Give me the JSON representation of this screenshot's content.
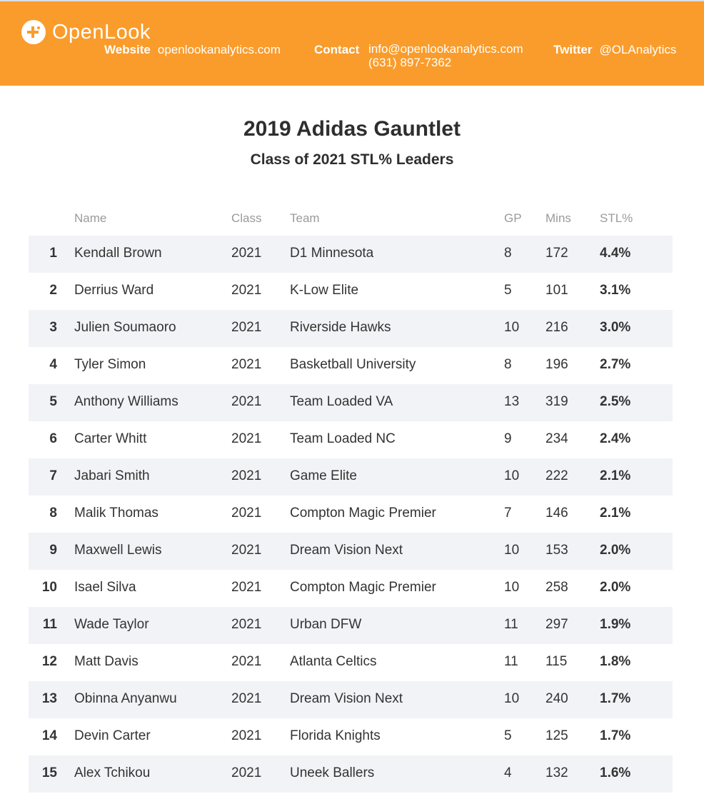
{
  "header": {
    "brand": "OpenLook",
    "website_label": "Website",
    "website_value": "openlookanalytics.com",
    "contact_label": "Contact",
    "contact_email": "info@openlookanalytics.com",
    "contact_phone": "(631) 897-7362",
    "twitter_label": "Twitter",
    "twitter_value": "@OLAnalytics",
    "color": "#fa9c2b"
  },
  "chart_data": {
    "type": "table",
    "title": "2019 Adidas Gauntlet",
    "subtitle": "Class of 2021 STL% Leaders",
    "columns": [
      "",
      "Name",
      "Class",
      "Team",
      "GP",
      "Mins",
      "STL%"
    ],
    "rows": [
      {
        "rank": "1",
        "name": "Kendall Brown",
        "class": "2021",
        "team": "D1 Minnesota",
        "gp": "8",
        "mins": "172",
        "stl": "4.4%"
      },
      {
        "rank": "2",
        "name": "Derrius Ward",
        "class": "2021",
        "team": "K-Low Elite",
        "gp": "5",
        "mins": "101",
        "stl": "3.1%"
      },
      {
        "rank": "3",
        "name": "Julien Soumaoro",
        "class": "2021",
        "team": "Riverside Hawks",
        "gp": "10",
        "mins": "216",
        "stl": "3.0%"
      },
      {
        "rank": "4",
        "name": "Tyler Simon",
        "class": "2021",
        "team": "Basketball University",
        "gp": "8",
        "mins": "196",
        "stl": "2.7%"
      },
      {
        "rank": "5",
        "name": "Anthony Williams",
        "class": "2021",
        "team": "Team Loaded VA",
        "gp": "13",
        "mins": "319",
        "stl": "2.5%"
      },
      {
        "rank": "6",
        "name": "Carter Whitt",
        "class": "2021",
        "team": "Team Loaded NC",
        "gp": "9",
        "mins": "234",
        "stl": "2.4%"
      },
      {
        "rank": "7",
        "name": "Jabari Smith",
        "class": "2021",
        "team": "Game Elite",
        "gp": "10",
        "mins": "222",
        "stl": "2.1%"
      },
      {
        "rank": "8",
        "name": "Malik Thomas",
        "class": "2021",
        "team": "Compton Magic Premier",
        "gp": "7",
        "mins": "146",
        "stl": "2.1%"
      },
      {
        "rank": "9",
        "name": "Maxwell Lewis",
        "class": "2021",
        "team": "Dream Vision Next",
        "gp": "10",
        "mins": "153",
        "stl": "2.0%"
      },
      {
        "rank": "10",
        "name": "Isael Silva",
        "class": "2021",
        "team": "Compton Magic Premier",
        "gp": "10",
        "mins": "258",
        "stl": "2.0%"
      },
      {
        "rank": "11",
        "name": "Wade Taylor",
        "class": "2021",
        "team": "Urban DFW",
        "gp": "11",
        "mins": "297",
        "stl": "1.9%"
      },
      {
        "rank": "12",
        "name": "Matt Davis",
        "class": "2021",
        "team": "Atlanta Celtics",
        "gp": "11",
        "mins": "115",
        "stl": "1.8%"
      },
      {
        "rank": "13",
        "name": "Obinna Anyanwu",
        "class": "2021",
        "team": "Dream Vision Next",
        "gp": "10",
        "mins": "240",
        "stl": "1.7%"
      },
      {
        "rank": "14",
        "name": "Devin Carter",
        "class": "2021",
        "team": "Florida Knights",
        "gp": "5",
        "mins": "125",
        "stl": "1.7%"
      },
      {
        "rank": "15",
        "name": "Alex Tchikou",
        "class": "2021",
        "team": "Uneek Ballers",
        "gp": "4",
        "mins": "132",
        "stl": "1.6%"
      }
    ]
  }
}
